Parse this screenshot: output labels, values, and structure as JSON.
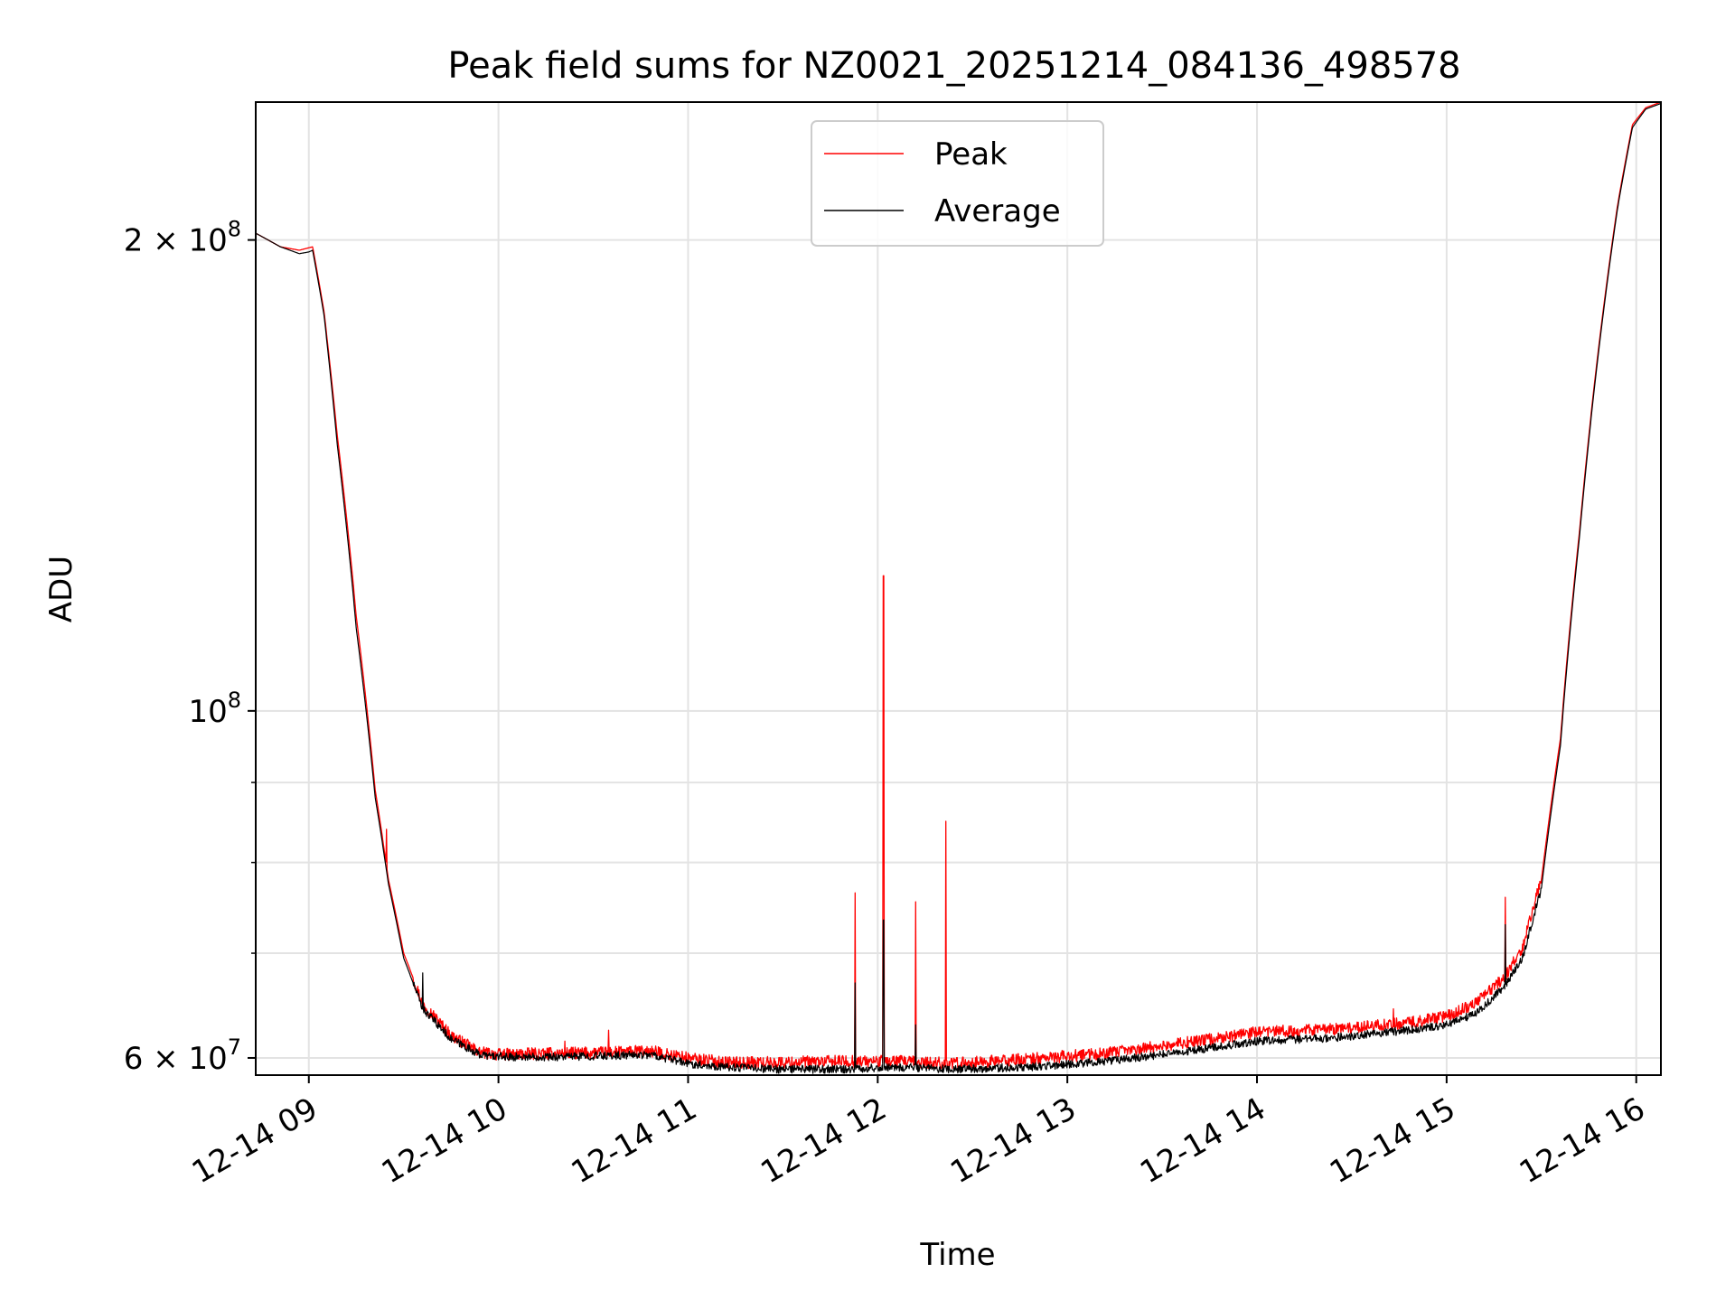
{
  "chart_data": {
    "type": "line",
    "title": "Peak field sums for NZ0021_20251214_084136_498578",
    "xlabel": "Time",
    "ylabel": "ADU",
    "yscale": "log",
    "xlim": [
      8.72,
      16.13
    ],
    "ylim": [
      58500000,
      245000000
    ],
    "grid": true,
    "legend": {
      "position": "top-center",
      "entries": [
        "Peak",
        "Average"
      ]
    },
    "x_ticks": [
      {
        "value": 9,
        "label": "12-14 09"
      },
      {
        "value": 10,
        "label": "12-14 10"
      },
      {
        "value": 11,
        "label": "12-14 11"
      },
      {
        "value": 12,
        "label": "12-14 12"
      },
      {
        "value": 13,
        "label": "12-14 13"
      },
      {
        "value": 14,
        "label": "12-14 14"
      },
      {
        "value": 15,
        "label": "12-14 15"
      },
      {
        "value": 16,
        "label": "12-14 16"
      }
    ],
    "y_ticks": [
      {
        "value": 60000000,
        "base": "6 × 10",
        "exp": "7"
      },
      {
        "value": 100000000,
        "base": "10",
        "exp": "8"
      },
      {
        "value": 200000000,
        "base": "2 × 10",
        "exp": "8"
      }
    ],
    "y_minor_ticks": [
      70000000,
      80000000,
      90000000
    ],
    "x_unit": "hour of 2025-12-14",
    "series": [
      {
        "name": "Peak",
        "color": "#ff0000",
        "x": [
          8.72,
          8.85,
          8.95,
          9.02,
          9.08,
          9.15,
          9.25,
          9.35,
          9.42,
          9.5,
          9.6,
          9.75,
          9.9,
          10.0,
          10.3,
          10.6,
          10.8,
          11.0,
          11.2,
          11.5,
          11.8,
          12.1,
          12.4,
          12.8,
          13.2,
          13.6,
          14.0,
          14.4,
          14.8,
          15.0,
          15.15,
          15.3,
          15.4,
          15.5,
          15.6,
          15.7,
          15.8,
          15.9,
          15.98,
          16.05,
          16.13
        ],
        "y": [
          202000000,
          198000000,
          197000000,
          198000000,
          180000000,
          150000000,
          115000000,
          89000000,
          78000000,
          70000000,
          65000000,
          62000000,
          60500000,
          60300000,
          60400000,
          60500000,
          60600000,
          60000000,
          59600000,
          59600000,
          59700000,
          59700000,
          59500000,
          59900000,
          60400000,
          61300000,
          62300000,
          62600000,
          63200000,
          63800000,
          65000000,
          67500000,
          70500000,
          78000000,
          96000000,
          130000000,
          170000000,
          210000000,
          237000000,
          243000000,
          245000000
        ],
        "spikes": [
          {
            "x": 9.15,
            "y": 145000000
          },
          {
            "x": 9.41,
            "y": 84000000
          },
          {
            "x": 10.35,
            "y": 61500000
          },
          {
            "x": 10.58,
            "y": 62500000
          },
          {
            "x": 11.88,
            "y": 76500000
          },
          {
            "x": 12.03,
            "y": 122000000
          },
          {
            "x": 12.2,
            "y": 75500000
          },
          {
            "x": 12.36,
            "y": 85000000
          },
          {
            "x": 14.72,
            "y": 64500000
          },
          {
            "x": 15.31,
            "y": 76000000
          }
        ]
      },
      {
        "name": "Average",
        "color": "#000000",
        "x": [
          8.72,
          8.85,
          8.95,
          9.0,
          9.02,
          9.08,
          9.15,
          9.25,
          9.35,
          9.42,
          9.5,
          9.6,
          9.75,
          9.9,
          10.0,
          10.3,
          10.6,
          10.8,
          11.0,
          11.2,
          11.5,
          11.8,
          12.1,
          12.4,
          12.8,
          13.2,
          13.6,
          14.0,
          14.4,
          14.8,
          15.0,
          15.15,
          15.3,
          15.4,
          15.5,
          15.6,
          15.7,
          15.8,
          15.9,
          15.98,
          16.05,
          16.13
        ],
        "y": [
          202000000,
          198000000,
          196000000,
          196500000,
          197000000,
          179000000,
          148000000,
          113000000,
          88000000,
          77500000,
          69500000,
          64500000,
          61700000,
          60300000,
          60100000,
          60100000,
          60200000,
          60300000,
          59500000,
          59200000,
          59000000,
          59000000,
          59200000,
          59000000,
          59200000,
          59700000,
          60500000,
          61500000,
          61800000,
          62500000,
          63000000,
          64000000,
          66500000,
          69500000,
          77000000,
          95000000,
          129000000,
          169000000,
          209000000,
          236000000,
          242500000,
          244500000
        ],
        "spikes": [
          {
            "x": 9.6,
            "y": 68000000
          },
          {
            "x": 11.88,
            "y": 67000000
          },
          {
            "x": 12.03,
            "y": 73500000
          },
          {
            "x": 12.2,
            "y": 63000000
          },
          {
            "x": 15.31,
            "y": 73000000
          }
        ]
      }
    ]
  }
}
